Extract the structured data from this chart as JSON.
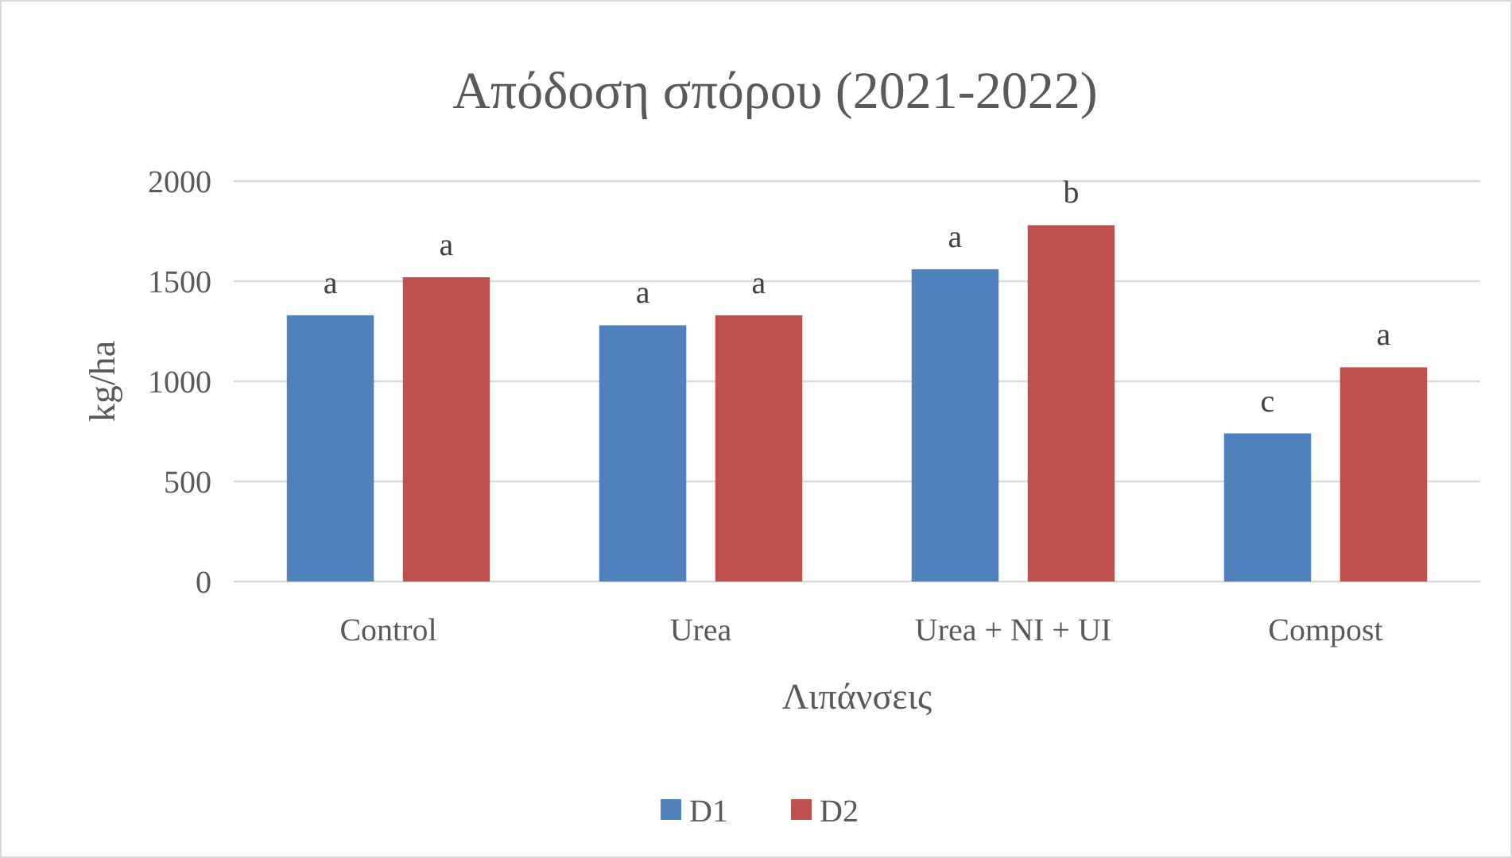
{
  "chart_data": {
    "type": "bar",
    "title": "Απόδοση σπόρου (2021-2022)",
    "xlabel": "Λιπάνσεις",
    "ylabel": "kg/ha",
    "categories": [
      "Control",
      "Urea",
      "Urea + NI + UI",
      "Compost"
    ],
    "series": [
      {
        "name": "D1",
        "color": "#4f81bd",
        "values": [
          1330,
          1280,
          1560,
          740
        ],
        "value_labels": [
          "a",
          "a",
          "a",
          "c"
        ]
      },
      {
        "name": "D2",
        "color": "#c0504d",
        "values": [
          1520,
          1330,
          1780,
          1070
        ],
        "value_labels": [
          "a",
          "a",
          "b",
          "a"
        ]
      }
    ],
    "ylim": [
      0,
      2000
    ],
    "yticks": [
      0,
      500,
      1000,
      1500,
      2000
    ],
    "grid": "y",
    "legend": "bottom"
  }
}
